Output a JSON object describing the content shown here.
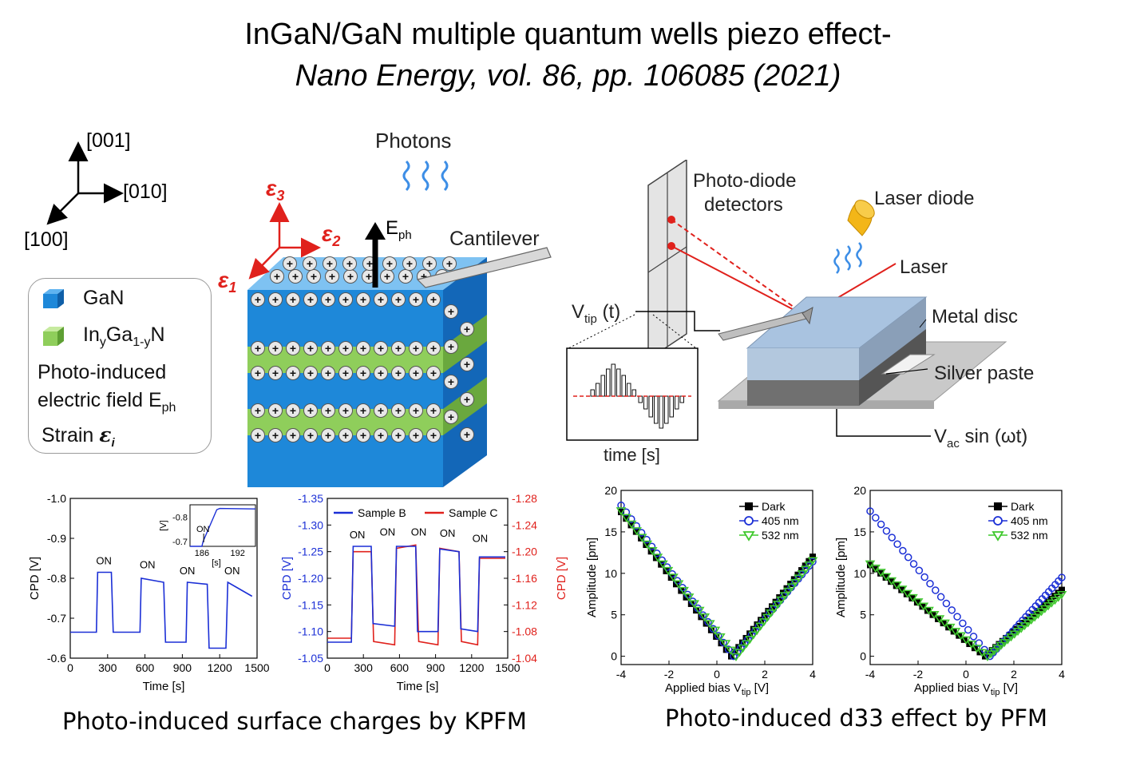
{
  "title": {
    "line1": "InGaN/GaN multiple quantum wells piezo effect-",
    "line2": "Nano Energy, vol. 86, pp. 106085 (2021)"
  },
  "axes3d": {
    "z": "[001]",
    "y": "[010]",
    "x": "[100]"
  },
  "structure": {
    "photons": "Photons",
    "eph": "E",
    "eph_sub": "ph",
    "cantilever": "Cantilever",
    "eps_symbol": "ε",
    "eps1_sub": "1",
    "eps2_sub": "2",
    "eps3_sub": "3",
    "colors": {
      "gan": "#1e88d9",
      "ingan": "#8fce5b",
      "strain": "#e0211c"
    }
  },
  "legend": {
    "gan": "GaN",
    "ingan_in": "In",
    "ingan_y": "y",
    "ingan_ga": "Ga",
    "ingan_1y": "1-y",
    "ingan_n": "N",
    "field_line1": "Photo-induced",
    "field_line2": "electric field E",
    "field_sub": "ph",
    "strain": "Strain ",
    "strain_sym": "ε",
    "strain_sub": "i"
  },
  "setup": {
    "photodiode_line1": "Photo-diode",
    "photodiode_line2": "detectors",
    "laser_diode": "Laser diode",
    "laser": "Laser",
    "metal_disc": "Metal disc",
    "silver_paste": "Silver paste",
    "vtip_v": "V",
    "vtip_sub": "tip",
    "vtip_t": " (t)",
    "inset_xlabel": "time [s]",
    "vac_v": "V",
    "vac_sub": "ac",
    "vac_rest": " sin (ωt)"
  },
  "captions": {
    "kpfm": "Photo-induced surface charges by KPFM",
    "pfm": "Photo-induced d33 effect by PFM"
  },
  "chart_data": [
    {
      "id": "kpfm-a",
      "type": "line",
      "xlabel": "Time [s]",
      "ylabel": "CPD [V]",
      "xlim": [
        0,
        1500
      ],
      "ylim": [
        -1.0,
        -0.6
      ],
      "y_inverted": true,
      "xticks": [
        "0",
        "300",
        "600",
        "900",
        "1200",
        "1500"
      ],
      "yticks": [
        "-1.0",
        "-0.9",
        "-0.8",
        "-0.7",
        "-0.6"
      ],
      "annotations": [
        "ON",
        "ON",
        "ON",
        "ON"
      ],
      "annotation_x": [
        270,
        620,
        940,
        1300
      ],
      "annotation_y": [
        -0.835,
        -0.825,
        -0.81,
        -0.81
      ],
      "series": [
        {
          "color": "#1b2fd6",
          "x": [
            0,
            210,
            220,
            330,
            345,
            560,
            570,
            750,
            765,
            930,
            940,
            1100,
            1115,
            1250,
            1265,
            1460
          ],
          "y": [
            -0.665,
            -0.665,
            -0.815,
            -0.815,
            -0.665,
            -0.665,
            -0.8,
            -0.79,
            -0.64,
            -0.64,
            -0.79,
            -0.785,
            -0.625,
            -0.625,
            -0.79,
            -0.755
          ]
        }
      ],
      "inset": {
        "xlim": [
          184,
          195
        ],
        "ylim": [
          -0.85,
          -0.68
        ],
        "xticks": [
          "186",
          "192"
        ],
        "yticks": [
          "-0.8",
          "-0.7"
        ],
        "xlabel": "[s]",
        "ylabel": "[V]",
        "annotation": "ON",
        "x": [
          184,
          186,
          186.2,
          188.5,
          189,
          195
        ],
        "y": [
          -0.68,
          -0.68,
          -0.7,
          -0.83,
          -0.835,
          -0.833
        ]
      }
    },
    {
      "id": "kpfm-b",
      "type": "line",
      "xlabel": "Time [s]",
      "ylabel": "CPD [V]",
      "ylabel_right": "CPD [V]",
      "xlim": [
        0,
        1500
      ],
      "ylim": [
        -1.35,
        -1.05
      ],
      "ylim_right": [
        -1.28,
        -1.04
      ],
      "y_inverted": true,
      "xticks": [
        "0",
        "300",
        "600",
        "900",
        "1200",
        "1500"
      ],
      "yticks": [
        "-1.35",
        "-1.30",
        "-1.25",
        "-1.20",
        "-1.15",
        "-1.10",
        "-1.05"
      ],
      "yticks_right": [
        "-1.28",
        "-1.24",
        "-1.20",
        "-1.16",
        "-1.12",
        "-1.08",
        "-1.04"
      ],
      "annotations": [
        "ON",
        "ON",
        "ON",
        "ON",
        "ON"
      ],
      "annotation_x": [
        250,
        500,
        760,
        1000,
        1270
      ],
      "annotation_y": [
        -1.275,
        -1.28,
        -1.28,
        -1.278,
        -1.268
      ],
      "legend": [
        "Sample B",
        "Sample C"
      ],
      "series": [
        {
          "name": "Sample B",
          "color": "#1b2fd6",
          "x": [
            0,
            200,
            215,
            365,
            380,
            560,
            575,
            735,
            750,
            920,
            935,
            1095,
            1110,
            1250,
            1265,
            1480
          ],
          "y": [
            -1.08,
            -1.08,
            -1.26,
            -1.26,
            -1.115,
            -1.11,
            -1.26,
            -1.26,
            -1.1,
            -1.1,
            -1.255,
            -1.25,
            -1.105,
            -1.1,
            -1.24,
            -1.24
          ]
        },
        {
          "name": "Sample C",
          "color": "#e0211c",
          "x": [
            0,
            200,
            215,
            365,
            385,
            560,
            575,
            735,
            760,
            920,
            935,
            1095,
            1115,
            1250,
            1265,
            1480
          ],
          "y": [
            -1.07,
            -1.07,
            -1.2,
            -1.2,
            -1.065,
            -1.06,
            -1.205,
            -1.21,
            -1.065,
            -1.06,
            -1.205,
            -1.2,
            -1.065,
            -1.06,
            -1.19,
            -1.19
          ]
        }
      ]
    },
    {
      "id": "pfm-a",
      "type": "scatter",
      "xlabel": "Applied bias V",
      "xlabel_sub": "tip",
      "xlabel_unit": " [V]",
      "ylabel": "Amplitude [pm]",
      "xlim": [
        -4,
        4
      ],
      "ylim": [
        -1,
        20
      ],
      "xticks": [
        "-4",
        "-2",
        "0",
        "2",
        "4"
      ],
      "yticks": [
        "0",
        "5",
        "10",
        "15",
        "20"
      ],
      "legend": [
        "Dark",
        "405 nm",
        "532 nm"
      ],
      "series": [
        {
          "name": "Dark",
          "marker": "square",
          "color": "#000000",
          "x": [
            -4,
            0.6,
            4
          ],
          "y": [
            17.4,
            0,
            12
          ]
        },
        {
          "name": "405 nm",
          "marker": "circle",
          "color": "#1b2fd6",
          "x": [
            -4,
            0.7,
            4
          ],
          "y": [
            18.2,
            0,
            11.4
          ]
        },
        {
          "name": "532 nm",
          "marker": "triangle",
          "color": "#3fc82d",
          "x": [
            -4,
            0.8,
            4
          ],
          "y": [
            17.6,
            0,
            11.6
          ]
        }
      ]
    },
    {
      "id": "pfm-b",
      "type": "scatter",
      "xlabel": "Applied bias V",
      "xlabel_sub": "tip",
      "xlabel_unit": " [V]",
      "ylabel": "Amplitude [pm]",
      "xlim": [
        -4,
        4
      ],
      "ylim": [
        -1,
        20
      ],
      "xticks": [
        "-4",
        "-2",
        "0",
        "2",
        "4"
      ],
      "yticks": [
        "0",
        "5",
        "10",
        "15",
        "20"
      ],
      "legend": [
        "Dark",
        "405 nm",
        "532 nm"
      ],
      "series": [
        {
          "name": "Dark",
          "marker": "square",
          "color": "#000000",
          "x": [
            -4,
            0.8,
            4
          ],
          "y": [
            11,
            0,
            8
          ]
        },
        {
          "name": "405 nm",
          "marker": "circle",
          "color": "#1b2fd6",
          "x": [
            -4,
            1.0,
            4
          ],
          "y": [
            17.5,
            0,
            9.5
          ]
        },
        {
          "name": "532 nm",
          "marker": "triangle",
          "color": "#3fc82d",
          "x": [
            -4,
            0.9,
            4
          ],
          "y": [
            11.2,
            0,
            7.5
          ]
        }
      ]
    }
  ]
}
